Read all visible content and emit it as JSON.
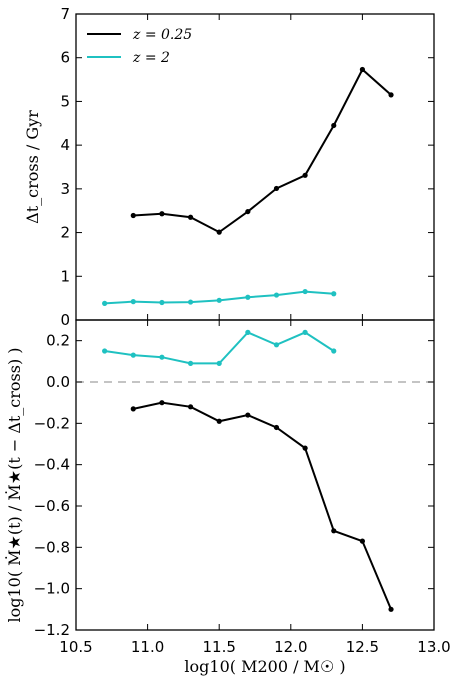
{
  "chart_data": [
    {
      "type": "line",
      "ylabel": "Δt_cross / Gyr",
      "ylim": [
        0,
        7
      ],
      "yticks": [
        "0",
        "1",
        "2",
        "3",
        "4",
        "5",
        "6",
        "7"
      ],
      "xlim": [
        10.5,
        13.0
      ],
      "legend": {
        "placement": "top-left"
      },
      "series": [
        {
          "name": "z = 0.25",
          "color": "#000000",
          "x": [
            10.9,
            11.1,
            11.3,
            11.5,
            11.7,
            11.9,
            12.1,
            12.3,
            12.5,
            12.7
          ],
          "y": [
            2.39,
            2.43,
            2.35,
            2.01,
            2.48,
            3.01,
            3.31,
            4.45,
            5.73,
            5.15
          ]
        },
        {
          "name": "z = 2",
          "color": "#1fc1c1",
          "x": [
            10.7,
            10.9,
            11.1,
            11.3,
            11.5,
            11.7,
            11.9,
            12.1,
            12.3
          ],
          "y": [
            0.38,
            0.42,
            0.4,
            0.41,
            0.45,
            0.52,
            0.57,
            0.65,
            0.6
          ]
        }
      ]
    },
    {
      "type": "line",
      "ylabel": "log10( Ṁ★(t) / Ṁ★(t − Δt_cross) )",
      "xlabel": "log10( M200 / M☉ )",
      "ylim": [
        -1.2,
        0.3
      ],
      "yticks": [
        "−1.2",
        "−1.0",
        "−0.8",
        "−0.6",
        "−0.4",
        "−0.2",
        "0.0",
        "0.2"
      ],
      "xlim": [
        10.5,
        13.0
      ],
      "xticks": [
        "10.5",
        "11.0",
        "11.5",
        "12.0",
        "12.5",
        "13.0"
      ],
      "reference_line": {
        "y": 0.0,
        "style": "dashed",
        "color": "#a0a0a0"
      },
      "series": [
        {
          "name": "z = 0.25",
          "color": "#000000",
          "x": [
            10.9,
            11.1,
            11.3,
            11.5,
            11.7,
            11.9,
            12.1,
            12.3,
            12.5,
            12.7
          ],
          "y": [
            -0.13,
            -0.1,
            -0.12,
            -0.19,
            -0.16,
            -0.22,
            -0.32,
            -0.72,
            -0.77,
            -1.1
          ]
        },
        {
          "name": "z = 2",
          "color": "#1fc1c1",
          "x": [
            10.7,
            10.9,
            11.1,
            11.3,
            11.5,
            11.7,
            11.9,
            12.1,
            12.3
          ],
          "y": [
            0.15,
            0.13,
            0.12,
            0.09,
            0.09,
            0.24,
            0.18,
            0.24,
            0.15
          ]
        }
      ]
    }
  ]
}
